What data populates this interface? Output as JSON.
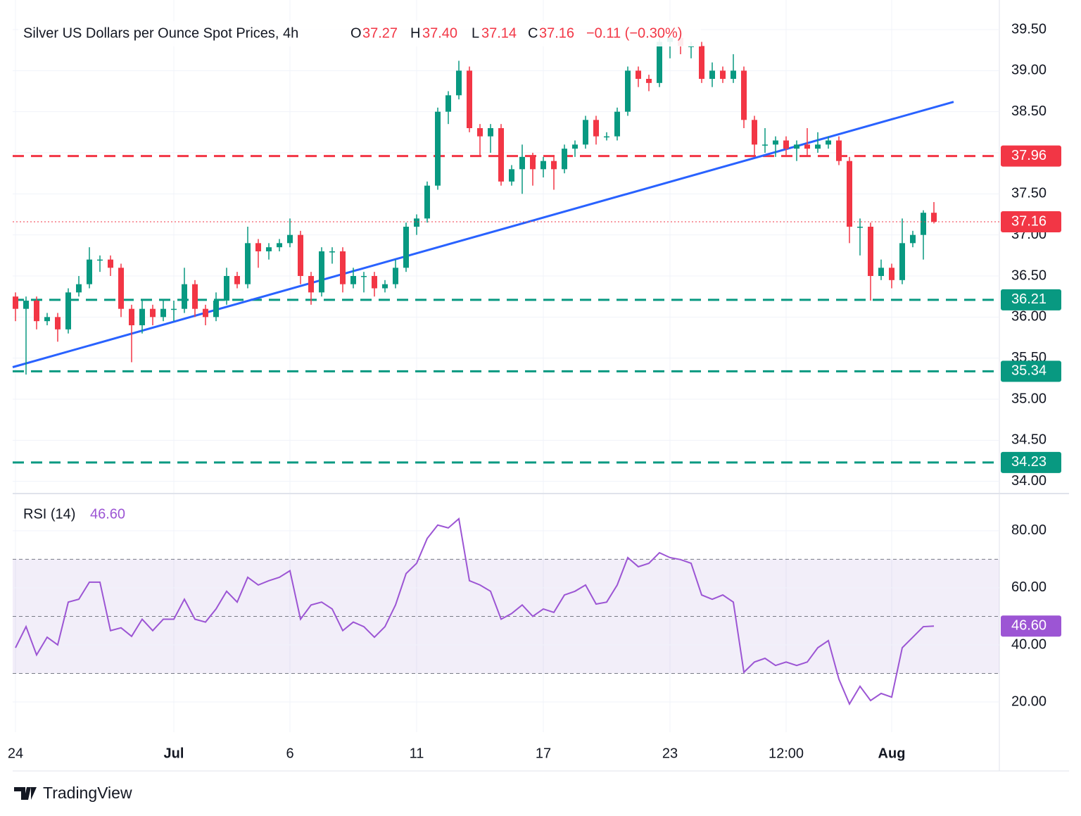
{
  "chart_data": {
    "type": "candlestick",
    "title": "Silver US Dollars per Ounce Spot Prices, 4h",
    "header": {
      "o_key": "O",
      "o": "37.27",
      "h_key": "H",
      "h": "37.40",
      "l_key": "L",
      "l": "37.14",
      "c_key": "C",
      "c": "37.16",
      "change": "−0.11 (−0.30%)"
    },
    "categories": [
      "24",
      null,
      null,
      null,
      null,
      null,
      null,
      null,
      null,
      null,
      null,
      null,
      null,
      null,
      null,
      "Jul",
      null,
      null,
      null,
      null,
      null,
      null,
      null,
      null,
      null,
      null,
      "6",
      null,
      null,
      null,
      null,
      null,
      null,
      null,
      null,
      null,
      null,
      null,
      "11",
      null,
      null,
      null,
      null,
      null,
      null,
      null,
      null,
      null,
      null,
      null,
      "17",
      null,
      null,
      null,
      null,
      null,
      null,
      null,
      null,
      null,
      null,
      null,
      "23",
      null,
      null,
      null,
      null,
      null,
      null,
      null,
      null,
      null,
      null,
      "12:00",
      null,
      null,
      null,
      null,
      null,
      null,
      null,
      null,
      null,
      "Aug",
      null,
      null,
      null,
      null
    ],
    "open": [
      36.25,
      36.1,
      36.2,
      35.95,
      36.0,
      35.85,
      36.3,
      36.4,
      36.7,
      36.7,
      36.6,
      36.1,
      35.9,
      36.1,
      36.0,
      36.1,
      36.1,
      36.4,
      36.1,
      36.0,
      36.2,
      36.5,
      36.4,
      36.9,
      36.8,
      36.85,
      36.9,
      37.0,
      36.5,
      36.3,
      36.8,
      36.8,
      36.4,
      36.5,
      36.5,
      36.35,
      36.4,
      36.6,
      37.1,
      37.2,
      37.6,
      38.5,
      38.7,
      39.0,
      38.3,
      38.2,
      38.3,
      37.65,
      37.8,
      37.95,
      37.8,
      37.9,
      37.8,
      38.05,
      38.1,
      38.4,
      38.2,
      38.2,
      38.5,
      39.0,
      38.9,
      38.85,
      39.35,
      39.4,
      39.3,
      39.3,
      38.9,
      39.0,
      38.9,
      39.0,
      38.4,
      38.1,
      38.1,
      38.15,
      38.05,
      38.1,
      38.05,
      38.1,
      38.15,
      37.9,
      37.1,
      37.1,
      36.5,
      36.6,
      36.45,
      36.9,
      37.0,
      37.27
    ],
    "high": [
      36.3,
      36.25,
      36.25,
      36.05,
      36.05,
      36.35,
      36.5,
      36.85,
      36.75,
      36.75,
      36.65,
      36.15,
      36.2,
      36.15,
      36.2,
      36.2,
      36.6,
      36.45,
      36.15,
      36.3,
      36.6,
      36.55,
      37.1,
      36.95,
      36.9,
      36.95,
      37.2,
      37.05,
      36.55,
      36.85,
      36.85,
      36.85,
      36.6,
      36.55,
      36.55,
      36.45,
      36.7,
      37.15,
      37.25,
      37.65,
      38.55,
      38.75,
      39.12,
      39.05,
      38.35,
      38.35,
      38.35,
      37.85,
      38.1,
      38.0,
      37.95,
      37.95,
      38.1,
      38.15,
      38.45,
      38.45,
      38.25,
      38.55,
      39.05,
      39.05,
      38.95,
      39.4,
      39.45,
      39.45,
      39.35,
      39.35,
      39.1,
      39.05,
      39.2,
      39.05,
      38.45,
      38.3,
      38.2,
      38.2,
      38.15,
      38.3,
      38.25,
      38.2,
      38.2,
      37.95,
      37.2,
      37.15,
      36.7,
      36.65,
      37.2,
      37.05,
      37.3,
      37.4
    ],
    "low": [
      35.95,
      35.3,
      35.85,
      35.9,
      35.7,
      35.8,
      36.25,
      36.35,
      36.55,
      36.5,
      36.0,
      35.45,
      35.8,
      35.9,
      35.95,
      35.95,
      36.05,
      36.0,
      35.9,
      35.95,
      36.15,
      36.35,
      36.35,
      36.6,
      36.7,
      36.8,
      36.85,
      36.4,
      36.15,
      36.25,
      36.65,
      36.3,
      36.35,
      36.3,
      36.25,
      36.3,
      36.35,
      36.55,
      37.0,
      37.15,
      37.55,
      38.35,
      38.65,
      38.25,
      37.95,
      38.0,
      37.6,
      37.6,
      37.5,
      37.6,
      37.7,
      37.55,
      37.75,
      37.95,
      38.05,
      38.1,
      38.15,
      38.15,
      38.45,
      38.8,
      38.75,
      38.8,
      39.15,
      39.2,
      39.15,
      38.85,
      38.8,
      38.85,
      38.85,
      38.3,
      37.95,
      38.0,
      37.95,
      37.95,
      37.9,
      37.95,
      38.0,
      38.05,
      37.85,
      36.9,
      36.75,
      36.2,
      36.45,
      36.35,
      36.4,
      36.85,
      36.7,
      37.14
    ],
    "close": [
      36.1,
      36.2,
      35.95,
      36.0,
      35.85,
      36.3,
      36.4,
      36.7,
      36.7,
      36.6,
      36.1,
      35.9,
      36.1,
      36.0,
      36.1,
      36.1,
      36.4,
      36.1,
      36.0,
      36.2,
      36.5,
      36.4,
      36.9,
      36.8,
      36.85,
      36.9,
      37.0,
      36.5,
      36.3,
      36.8,
      36.8,
      36.4,
      36.5,
      36.5,
      36.35,
      36.4,
      36.6,
      37.1,
      37.2,
      37.6,
      38.5,
      38.7,
      39.0,
      38.3,
      38.2,
      38.3,
      37.65,
      37.8,
      37.95,
      37.8,
      37.9,
      37.8,
      38.05,
      38.1,
      38.4,
      38.2,
      38.2,
      38.5,
      39.0,
      38.9,
      38.85,
      39.35,
      39.4,
      39.3,
      39.3,
      38.9,
      39.0,
      38.9,
      39.0,
      38.4,
      38.1,
      38.1,
      38.15,
      38.05,
      38.1,
      38.05,
      38.1,
      38.15,
      37.9,
      37.1,
      37.1,
      36.5,
      36.6,
      36.45,
      36.9,
      37.0,
      37.27,
      37.16
    ],
    "up_color": "#089981",
    "down_color": "#f23645",
    "ylim": [
      33.86,
      39.86
    ],
    "yticks": [
      {
        "value": 34,
        "label": "34.00"
      },
      {
        "value": 34.5,
        "label": "34.50"
      },
      {
        "value": 35,
        "label": "35.00"
      },
      {
        "value": 35.5,
        "label": "35.50"
      },
      {
        "value": 36,
        "label": "36.00"
      },
      {
        "value": 36.5,
        "label": "36.50"
      },
      {
        "value": 37,
        "label": "37.00"
      },
      {
        "value": 37.5,
        "label": "37.50"
      },
      {
        "value": 38,
        "label": "38.00"
      },
      {
        "value": 38.5,
        "label": "38.50"
      },
      {
        "value": 39,
        "label": "39.00"
      },
      {
        "value": 39.5,
        "label": "39.50"
      }
    ],
    "levels": [
      {
        "value": 37.96,
        "color": "#f23645"
      },
      {
        "value": 36.21,
        "color": "#089981"
      },
      {
        "value": 35.34,
        "color": "#089981"
      },
      {
        "value": 34.23,
        "color": "#089981"
      }
    ],
    "trendline": {
      "start": 35.39,
      "end": 38.62,
      "color": "#2962ff"
    },
    "grid": true,
    "rsi": {
      "title": "RSI (14)",
      "current_label": "46.60",
      "color": "#9c55d4",
      "values": [
        39,
        46.4,
        36.5,
        42.7,
        40,
        55,
        56,
        62,
        62,
        45,
        46,
        43,
        49,
        45,
        49,
        49,
        56,
        49,
        48,
        52.6,
        58.8,
        55,
        63.7,
        61,
        62.5,
        63.7,
        66,
        49,
        54,
        55,
        52.6,
        45,
        48,
        46.4,
        42.7,
        46.4,
        54,
        65,
        68.6,
        77.3,
        82,
        81,
        84.2,
        62.5,
        61,
        58.8,
        49,
        51,
        54,
        50,
        52.6,
        51.4,
        57.5,
        58.8,
        61,
        54.3,
        55,
        61,
        70.6,
        67.4,
        68.6,
        72.3,
        70.6,
        69.9,
        68.6,
        57.5,
        56,
        57.5,
        55,
        30.4,
        34,
        35.3,
        32.8,
        34,
        32.8,
        34,
        39,
        41.5,
        28,
        19.3,
        25.5,
        20.5,
        23,
        21.7,
        39,
        42.7,
        46.4,
        46.6
      ],
      "ylim": [
        9.4,
        92.8
      ],
      "yticks": [
        {
          "value": 20,
          "label": "20.00"
        },
        {
          "value": 40,
          "label": "40.00"
        },
        {
          "value": 60,
          "label": "60.00"
        },
        {
          "value": 80,
          "label": "80.00"
        }
      ],
      "band": [
        30,
        70
      ],
      "levels": [
        30,
        50,
        70
      ]
    },
    "footer": "TradingView"
  }
}
